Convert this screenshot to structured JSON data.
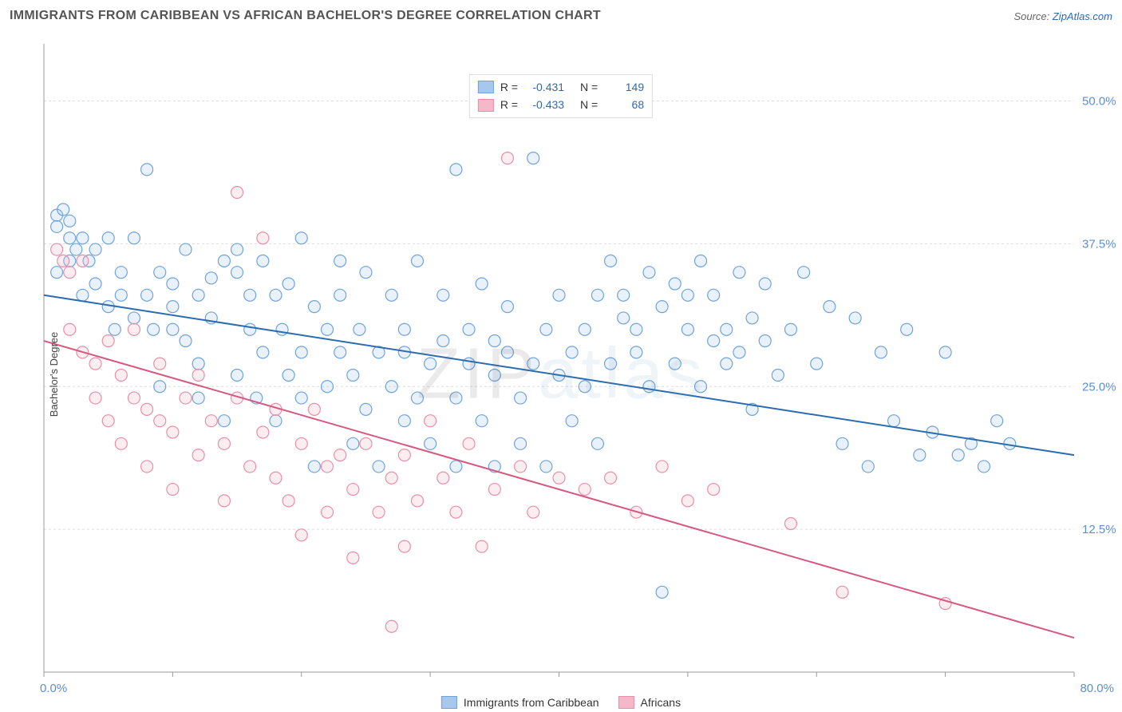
{
  "header": {
    "title": "IMMIGRANTS FROM CARIBBEAN VS AFRICAN BACHELOR'S DEGREE CORRELATION CHART",
    "source_prefix": "Source: ",
    "source_link": "ZipAtlas.com"
  },
  "chart": {
    "type": "scatter",
    "ylabel": "Bachelor's Degree",
    "watermark": "ZIPatlas",
    "xlim": [
      0,
      80
    ],
    "ylim": [
      0,
      55
    ],
    "x_tick_start": 0,
    "x_tick_step": 10,
    "x_tick_count": 9,
    "y_ticks": [
      12.5,
      25.0,
      37.5,
      50.0
    ],
    "x_labels": {
      "min": "0.0%",
      "max": "80.0%"
    },
    "y_labels": [
      "12.5%",
      "25.0%",
      "37.5%",
      "50.0%"
    ],
    "grid_color": "#dddddd",
    "axis_color": "#999999",
    "background": "#ffffff",
    "axis_label_color": "#5b8fd6",
    "tick_label_fontsize": 15,
    "ylabel_fontsize": 13,
    "marker_radius": 7.5,
    "marker_stroke_width": 1.2,
    "marker_fill_opacity": 0.25,
    "trend_line_width": 2,
    "series": [
      {
        "name": "Immigrants from Caribbean",
        "color_fill": "#a7c7ec",
        "color_stroke": "#6fa3dd",
        "trend_color": "#2b6cb0",
        "r": "-0.431",
        "n": "149",
        "trend": {
          "x1": 0,
          "y1": 33,
          "x2": 80,
          "y2": 19
        },
        "points": [
          [
            1,
            40
          ],
          [
            1,
            39
          ],
          [
            1.5,
            40.5
          ],
          [
            2,
            38
          ],
          [
            2,
            39.5
          ],
          [
            2.5,
            37
          ],
          [
            2,
            36
          ],
          [
            1,
            35
          ],
          [
            3,
            38
          ],
          [
            3,
            33
          ],
          [
            3.5,
            36
          ],
          [
            4,
            37
          ],
          [
            4,
            34
          ],
          [
            5,
            38
          ],
          [
            5,
            32
          ],
          [
            5.5,
            30
          ],
          [
            6,
            35
          ],
          [
            6,
            33
          ],
          [
            7,
            38
          ],
          [
            7,
            31
          ],
          [
            8,
            44
          ],
          [
            8,
            33
          ],
          [
            8.5,
            30
          ],
          [
            9,
            35
          ],
          [
            9,
            25
          ],
          [
            10,
            32
          ],
          [
            10,
            30
          ],
          [
            10,
            34
          ],
          [
            11,
            37
          ],
          [
            11,
            29
          ],
          [
            12,
            33
          ],
          [
            12,
            27
          ],
          [
            12,
            24
          ],
          [
            13,
            31
          ],
          [
            13,
            34.5
          ],
          [
            14,
            36
          ],
          [
            14,
            22
          ],
          [
            15,
            26
          ],
          [
            15,
            35
          ],
          [
            15,
            37
          ],
          [
            16,
            33
          ],
          [
            16,
            30
          ],
          [
            16.5,
            24
          ],
          [
            17,
            28
          ],
          [
            17,
            36
          ],
          [
            18,
            33
          ],
          [
            18,
            22
          ],
          [
            18.5,
            30
          ],
          [
            19,
            26
          ],
          [
            19,
            34
          ],
          [
            20,
            28
          ],
          [
            20,
            24
          ],
          [
            20,
            38
          ],
          [
            21,
            32
          ],
          [
            21,
            18
          ],
          [
            22,
            30
          ],
          [
            22,
            25
          ],
          [
            23,
            28
          ],
          [
            23,
            33
          ],
          [
            23,
            36
          ],
          [
            24,
            26
          ],
          [
            24,
            20
          ],
          [
            24.5,
            30
          ],
          [
            25,
            23
          ],
          [
            25,
            35
          ],
          [
            26,
            28
          ],
          [
            26,
            18
          ],
          [
            27,
            33
          ],
          [
            27,
            25
          ],
          [
            28,
            28
          ],
          [
            28,
            22
          ],
          [
            28,
            30
          ],
          [
            29,
            36
          ],
          [
            29,
            24
          ],
          [
            30,
            27
          ],
          [
            30,
            20
          ],
          [
            31,
            29
          ],
          [
            31,
            33
          ],
          [
            32,
            24
          ],
          [
            32,
            18
          ],
          [
            32,
            44
          ],
          [
            33,
            27
          ],
          [
            33,
            30
          ],
          [
            34,
            22
          ],
          [
            34,
            34
          ],
          [
            35,
            26
          ],
          [
            35,
            18
          ],
          [
            35,
            29
          ],
          [
            36,
            28
          ],
          [
            36,
            32
          ],
          [
            37,
            24
          ],
          [
            37,
            20
          ],
          [
            38,
            45
          ],
          [
            38,
            27
          ],
          [
            39,
            30
          ],
          [
            39,
            18
          ],
          [
            40,
            26
          ],
          [
            40,
            33
          ],
          [
            41,
            28
          ],
          [
            41,
            22
          ],
          [
            42,
            30
          ],
          [
            42,
            25
          ],
          [
            43,
            33
          ],
          [
            43,
            20
          ],
          [
            44,
            27
          ],
          [
            44,
            36
          ],
          [
            45,
            31
          ],
          [
            45,
            33
          ],
          [
            46,
            28
          ],
          [
            46,
            30
          ],
          [
            47,
            25
          ],
          [
            47,
            35
          ],
          [
            48,
            7
          ],
          [
            48,
            32
          ],
          [
            49,
            34
          ],
          [
            49,
            27
          ],
          [
            50,
            30
          ],
          [
            50,
            33
          ],
          [
            51,
            36
          ],
          [
            51,
            25
          ],
          [
            52,
            29
          ],
          [
            52,
            33
          ],
          [
            53,
            30
          ],
          [
            53,
            27
          ],
          [
            54,
            35
          ],
          [
            54,
            28
          ],
          [
            55,
            31
          ],
          [
            55,
            23
          ],
          [
            56,
            34
          ],
          [
            56,
            29
          ],
          [
            57,
            26
          ],
          [
            58,
            30
          ],
          [
            59,
            35
          ],
          [
            60,
            27
          ],
          [
            61,
            32
          ],
          [
            62,
            20
          ],
          [
            63,
            31
          ],
          [
            64,
            18
          ],
          [
            65,
            28
          ],
          [
            66,
            22
          ],
          [
            67,
            30
          ],
          [
            68,
            19
          ],
          [
            69,
            21
          ],
          [
            70,
            28
          ],
          [
            71,
            19
          ],
          [
            72,
            20
          ],
          [
            73,
            18
          ],
          [
            74,
            22
          ],
          [
            75,
            20
          ]
        ]
      },
      {
        "name": "Africans",
        "color_fill": "#f5b8c9",
        "color_stroke": "#e88fa8",
        "trend_color": "#d6587f",
        "r": "-0.433",
        "n": "68",
        "trend": {
          "x1": 0,
          "y1": 29,
          "x2": 80,
          "y2": 3
        },
        "points": [
          [
            1,
            37
          ],
          [
            1.5,
            36
          ],
          [
            2,
            35
          ],
          [
            2,
            30
          ],
          [
            3,
            36
          ],
          [
            3,
            28
          ],
          [
            4,
            27
          ],
          [
            4,
            24
          ],
          [
            5,
            29
          ],
          [
            5,
            22
          ],
          [
            6,
            26
          ],
          [
            6,
            20
          ],
          [
            7,
            24
          ],
          [
            7,
            30
          ],
          [
            8,
            23
          ],
          [
            8,
            18
          ],
          [
            9,
            22
          ],
          [
            9,
            27
          ],
          [
            10,
            21
          ],
          [
            10,
            16
          ],
          [
            11,
            24
          ],
          [
            12,
            19
          ],
          [
            12,
            26
          ],
          [
            13,
            22
          ],
          [
            14,
            20
          ],
          [
            14,
            15
          ],
          [
            15,
            24
          ],
          [
            15,
            42
          ],
          [
            16,
            18
          ],
          [
            17,
            21
          ],
          [
            17,
            38
          ],
          [
            18,
            17
          ],
          [
            18,
            23
          ],
          [
            19,
            15
          ],
          [
            20,
            20
          ],
          [
            20,
            12
          ],
          [
            21,
            23
          ],
          [
            22,
            18
          ],
          [
            22,
            14
          ],
          [
            23,
            19
          ],
          [
            24,
            10
          ],
          [
            24,
            16
          ],
          [
            25,
            20
          ],
          [
            26,
            14
          ],
          [
            27,
            17
          ],
          [
            27,
            4
          ],
          [
            28,
            19
          ],
          [
            28,
            11
          ],
          [
            29,
            15
          ],
          [
            30,
            22
          ],
          [
            31,
            17
          ],
          [
            32,
            14
          ],
          [
            33,
            20
          ],
          [
            34,
            11
          ],
          [
            35,
            16
          ],
          [
            36,
            45
          ],
          [
            37,
            18
          ],
          [
            38,
            14
          ],
          [
            40,
            17
          ],
          [
            42,
            16
          ],
          [
            44,
            17
          ],
          [
            46,
            14
          ],
          [
            48,
            18
          ],
          [
            50,
            15
          ],
          [
            52,
            16
          ],
          [
            58,
            13
          ],
          [
            62,
            7
          ],
          [
            70,
            6
          ]
        ]
      }
    ]
  },
  "legend_top_labels": {
    "r": "R =",
    "n": "N ="
  },
  "legend_bottom": {
    "swatch_size": 18
  }
}
